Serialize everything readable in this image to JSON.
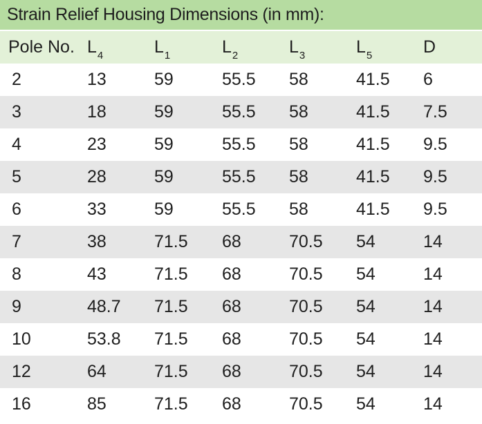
{
  "title": "Strain Relief Housing Dimensions (in mm):",
  "header": [
    {
      "main": "Pole No.",
      "sub": ""
    },
    {
      "main": "L",
      "sub": "4"
    },
    {
      "main": "L",
      "sub": "1"
    },
    {
      "main": "L",
      "sub": "2"
    },
    {
      "main": "L",
      "sub": "3"
    },
    {
      "main": "L",
      "sub": "5"
    },
    {
      "main": "D",
      "sub": ""
    }
  ],
  "rows": [
    [
      "2",
      "13",
      "59",
      "55.5",
      "58",
      "41.5",
      "6"
    ],
    [
      "3",
      "18",
      "59",
      "55.5",
      "58",
      "41.5",
      "7.5"
    ],
    [
      "4",
      "23",
      "59",
      "55.5",
      "58",
      "41.5",
      "9.5"
    ],
    [
      "5",
      "28",
      "59",
      "55.5",
      "58",
      "41.5",
      "9.5"
    ],
    [
      "6",
      "33",
      "59",
      "55.5",
      "58",
      "41.5",
      "9.5"
    ],
    [
      "7",
      "38",
      "71.5",
      "68",
      "70.5",
      "54",
      "14"
    ],
    [
      "8",
      "43",
      "71.5",
      "68",
      "70.5",
      "54",
      "14"
    ],
    [
      "9",
      "48.7",
      "71.5",
      "68",
      "70.5",
      "54",
      "14"
    ],
    [
      "10",
      "53.8",
      "71.5",
      "68",
      "70.5",
      "54",
      "14"
    ],
    [
      "12",
      "64",
      "71.5",
      "68",
      "70.5",
      "54",
      "14"
    ],
    [
      "16",
      "85",
      "71.5",
      "68",
      "70.5",
      "54",
      "14"
    ]
  ],
  "colors": {
    "title_bg": "#b6dca1",
    "header_bg": "#e3f1d8",
    "shaded_row_bg": "#e6e6e6",
    "plain_row_bg": "#ffffff",
    "text": "#1e1e1e"
  }
}
